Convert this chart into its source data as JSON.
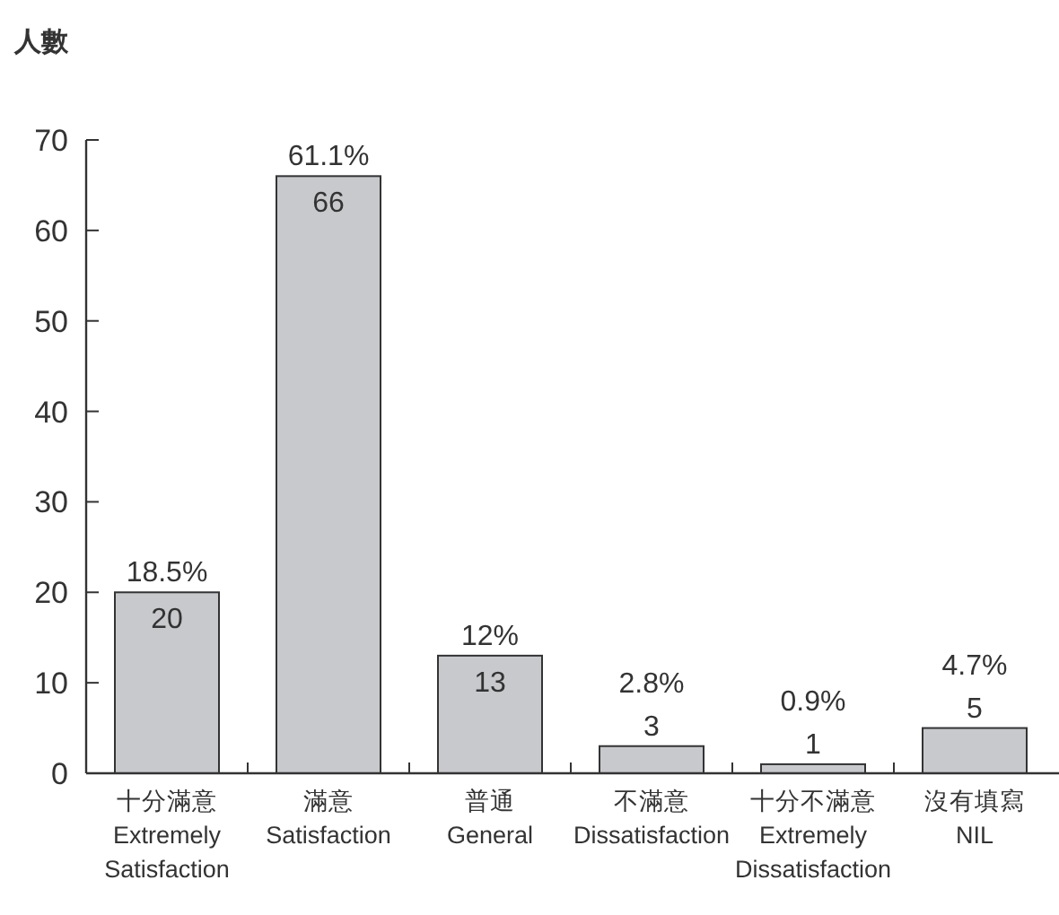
{
  "chart_data": {
    "type": "bar",
    "ylabel": "人數",
    "categories": [
      "十分滿意\nExtremely Satisfaction",
      "滿意\nSatisfaction",
      "普通\nGeneral",
      "不滿意\nDissatisfaction",
      "十分不滿意\nExtremely Dissatisfaction",
      "沒有填寫\nNIL"
    ],
    "values": [
      20,
      66,
      13,
      3,
      1,
      5
    ],
    "color": "#c8c9cc",
    "ylim": [
      0,
      70
    ],
    "yticks": [
      0,
      10,
      20,
      30,
      40,
      50,
      60,
      70
    ],
    "data_labels": true,
    "grid": false,
    "annotations": [
      {
        "text": "18.5%",
        "x": "十分滿意\nExtremely Satisfaction",
        "y": 20
      },
      {
        "text": "61.1%",
        "x": "滿意\nSatisfaction",
        "y": 66
      },
      {
        "text": "12%",
        "x": "普通\nGeneral",
        "y": 13
      },
      {
        "text": "2.8%",
        "x": "不滿意\nDissatisfaction",
        "y": 3
      },
      {
        "text": "0.9%",
        "x": "十分不滿意\nExtremely Dissatisfaction",
        "y": 1
      },
      {
        "text": "4.7%",
        "x": "沒有填寫\nNIL",
        "y": 5
      }
    ]
  }
}
